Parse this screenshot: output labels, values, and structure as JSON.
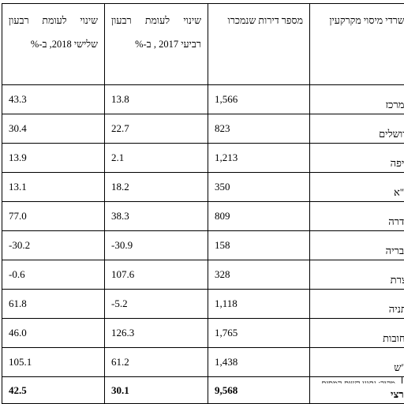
{
  "table": {
    "headers": {
      "office": "משרדי מיסוי מקרקעין",
      "apartments": "מספר דירות שנמכרו",
      "change_2017": "שינוי לעומת רבעון רביעי 2017 , ב-%",
      "change_2018": "שינוי לעומת רבעון שלישי 2018, ב-%"
    },
    "rows": [
      {
        "office": "המרכז",
        "apartments": "1,566",
        "change_2017": "13.8",
        "change_2018": "43.3"
      },
      {
        "office": "ירושלים",
        "apartments": "823",
        "change_2017": "22.7",
        "change_2018": "30.4"
      },
      {
        "office": "חיפה",
        "apartments": "1,213",
        "change_2017": "2.1",
        "change_2018": "13.9"
      },
      {
        "office": "ת\"א",
        "apartments": "350",
        "change_2017": "18.2",
        "change_2018": "13.1"
      },
      {
        "office": "חדרה",
        "apartments": "809",
        "change_2017": "38.3",
        "change_2018": "77.0"
      },
      {
        "office": "טבריה",
        "apartments": "158",
        "change_2017": "-30.9",
        "change_2018": "-30.2"
      },
      {
        "office": "נצרת",
        "apartments": "328",
        "change_2017": "107.6",
        "change_2018": "-0.6"
      },
      {
        "office": "נתניה",
        "apartments": "1,118",
        "change_2017": "-5.2",
        "change_2018": "61.8"
      },
      {
        "office": "רחובות",
        "apartments": "1,765",
        "change_2017": "126.3",
        "change_2018": "46.0"
      },
      {
        "office": "ב\"ש",
        "apartments": "1,438",
        "change_2017": "61.2",
        "change_2018": "105.1"
      }
    ],
    "total": {
      "office": "ארצי",
      "apartments": "9,568",
      "change_2017": "30.1",
      "change_2018": "42.5"
    }
  },
  "footnote": "מקור: נתוני רשות המסים"
}
